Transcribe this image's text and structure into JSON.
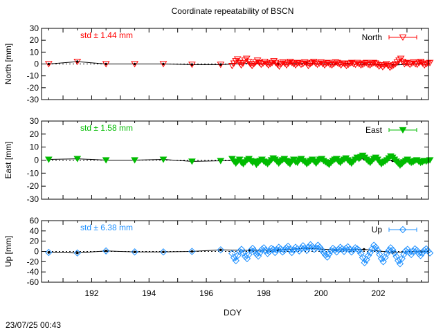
{
  "title": "Coordinate repeatability of BSCN",
  "timestamp": "23/07/25 00:43",
  "colors": {
    "north": "#ff0000",
    "east": "#00bb00",
    "up": "#1e90ff",
    "mean": "#000000"
  },
  "chart_data": [
    {
      "type": "scatter",
      "panel": "north",
      "ylabel": "North [mm]",
      "std_label": "std ± 1.44 mm",
      "legend": "North",
      "legend_position": "top-right",
      "marker": "open-triangle-down",
      "xlim": [
        190.25,
        203.75
      ],
      "ylim": [
        -30,
        30
      ],
      "yticks": [
        "30",
        "20",
        "10",
        "0",
        "-10",
        "-20",
        "-30"
      ],
      "mean_x": [
        190.5,
        191.5,
        192.5,
        193.5,
        194.5,
        195.5,
        196.5,
        197.5,
        198.5,
        199.5,
        200.5,
        201.5,
        202.5,
        203.5
      ],
      "mean_y": [
        0,
        2,
        0,
        0,
        0,
        -0.5,
        -0.5,
        0.5,
        0,
        0.5,
        0,
        0,
        -1,
        0.5
      ],
      "dense_values": [
        -1.5,
        0.5,
        2.5,
        4,
        1,
        -1,
        0.5,
        3,
        4.5,
        2,
        0,
        -1.5,
        0,
        1.5,
        3,
        1,
        -0.5,
        0.5,
        2,
        0.5,
        -1,
        0,
        1,
        2.5,
        1,
        -0.5,
        -2,
        0,
        1.5,
        0.5,
        -1,
        0.5,
        2,
        1,
        0,
        -1,
        0.5,
        1,
        -0.5,
        0,
        1.5,
        0.5,
        -1.5,
        0,
        1,
        2,
        0.5,
        -0.5,
        0.5,
        1.5,
        0,
        -1,
        0.5,
        1,
        -0.5,
        -1,
        0,
        1.5,
        1,
        0,
        -1,
        0.5,
        0,
        -1.5,
        -0.5,
        0.5,
        1,
        0,
        -0.5,
        1,
        0,
        -1,
        -0.5,
        0.5,
        1,
        -0.5,
        -1,
        0,
        1,
        0.5,
        -0.5,
        -2,
        -1,
        -2.5,
        -1,
        0,
        -1.5,
        -3,
        -2,
        -1,
        0,
        1.5,
        3,
        4.5,
        2,
        0,
        1,
        0.5,
        -0.5,
        0.5,
        1.5,
        0,
        -0.5,
        1,
        2,
        0.5,
        -1,
        0,
        0.5,
        1
      ]
    },
    {
      "type": "scatter",
      "panel": "east",
      "ylabel": "East [mm]",
      "std_label": "std ± 1.58 mm",
      "legend": "East",
      "legend_position": "top-right",
      "marker": "filled-triangle-down",
      "xlim": [
        190.25,
        203.75
      ],
      "ylim": [
        -30,
        30
      ],
      "yticks": [
        "30",
        "20",
        "10",
        "0",
        "-10",
        "-20",
        "-30"
      ],
      "mean_x": [
        190.5,
        191.5,
        192.5,
        193.5,
        194.5,
        195.5,
        196.5,
        197.5,
        198.5,
        199.5,
        200.5,
        201.5,
        202.5,
        203.5
      ],
      "mean_y": [
        0.5,
        1,
        0,
        0,
        0.5,
        -1,
        -0.5,
        0,
        0,
        -0.5,
        0,
        1,
        -0.5,
        0
      ],
      "dense_values": [
        1,
        -1,
        -2.5,
        -1,
        0.5,
        -2,
        -3,
        -1.5,
        0,
        1,
        -0.5,
        -2,
        -1,
        -3.5,
        -2,
        -0.5,
        0.5,
        -1,
        -2,
        -3,
        -1.5,
        0,
        1.5,
        0.5,
        -1,
        -2.5,
        -1,
        0,
        1,
        -0.5,
        -2,
        -3,
        -1,
        0.5,
        -1.5,
        -2,
        0,
        1,
        -0.5,
        -1.5,
        -3,
        -2,
        -0.5,
        0.5,
        -1,
        -2.5,
        -1,
        0.5,
        1,
        -0.5,
        -1.5,
        -2.5,
        -3.5,
        -2,
        -0.5,
        0.5,
        1,
        -1,
        -2,
        -0.5,
        0.5,
        1.5,
        0,
        -1.5,
        -2.5,
        -1,
        0.5,
        2,
        1,
        2.5,
        3.5,
        2,
        0.5,
        -1,
        -2,
        -0.5,
        1,
        2,
        0.5,
        -1.5,
        -3,
        -2,
        -1,
        0,
        1.5,
        3,
        2,
        0.5,
        -1,
        -2.5,
        -4,
        -3,
        -1.5,
        -0.5,
        0.5,
        -1,
        -2,
        -1.5,
        -0.5,
        0,
        -1,
        -2,
        -1.5,
        -0.5,
        -1,
        -0.5,
        0
      ]
    },
    {
      "type": "scatter",
      "panel": "up",
      "ylabel": "Up [mm]",
      "std_label": "std ± 6.38 mm",
      "legend": "Up",
      "legend_position": "top-right",
      "marker": "open-diamond",
      "xlim": [
        190.25,
        203.75
      ],
      "ylim": [
        -60,
        60
      ],
      "yticks": [
        "60",
        "40",
        "20",
        "0",
        "-20",
        "-40",
        "-60"
      ],
      "mean_x": [
        190.5,
        191.5,
        192.5,
        193.5,
        194.5,
        195.5,
        196.5,
        197.5,
        198.5,
        199.5,
        200.5,
        201.5,
        202.5,
        203.5
      ],
      "mean_y": [
        -2,
        -3,
        1,
        -1,
        -1,
        0,
        3,
        2,
        3,
        6,
        3,
        4,
        -2,
        0
      ],
      "dense_values": [
        -4,
        -12,
        -18,
        -8,
        0,
        4,
        -3,
        -10,
        -14,
        -6,
        2,
        6,
        1,
        -5,
        -9,
        -2,
        4,
        7,
        2,
        -4,
        0,
        6,
        4,
        -2,
        3,
        8,
        5,
        -1,
        2,
        7,
        10,
        4,
        -2,
        3,
        8,
        5,
        1,
        6,
        11,
        7,
        2,
        8,
        13,
        9,
        4,
        7,
        12,
        8,
        3,
        -2,
        -7,
        -11,
        -5,
        1,
        6,
        3,
        -1,
        4,
        8,
        5,
        0,
        6,
        9,
        4,
        -1,
        3,
        7,
        5,
        2,
        -4,
        -12,
        -22,
        -16,
        -8,
        -2,
        5,
        12,
        8,
        2,
        -6,
        -14,
        -20,
        -12,
        -4,
        2,
        7,
        3,
        -3,
        -10,
        -18,
        -24,
        -14,
        -6,
        1,
        4,
        -2,
        -6,
        0,
        5,
        2,
        -4,
        -8,
        -3,
        2,
        5,
        1,
        -3
      ]
    }
  ],
  "xaxis": {
    "label": "DOY",
    "ticks": [
      192,
      194,
      196,
      198,
      200,
      202
    ],
    "tick_labels": [
      "192",
      "194",
      "196",
      "198",
      "200",
      "202"
    ],
    "minor_step": 0.5,
    "dense_start": 196.9,
    "dense_end": 203.8
  }
}
